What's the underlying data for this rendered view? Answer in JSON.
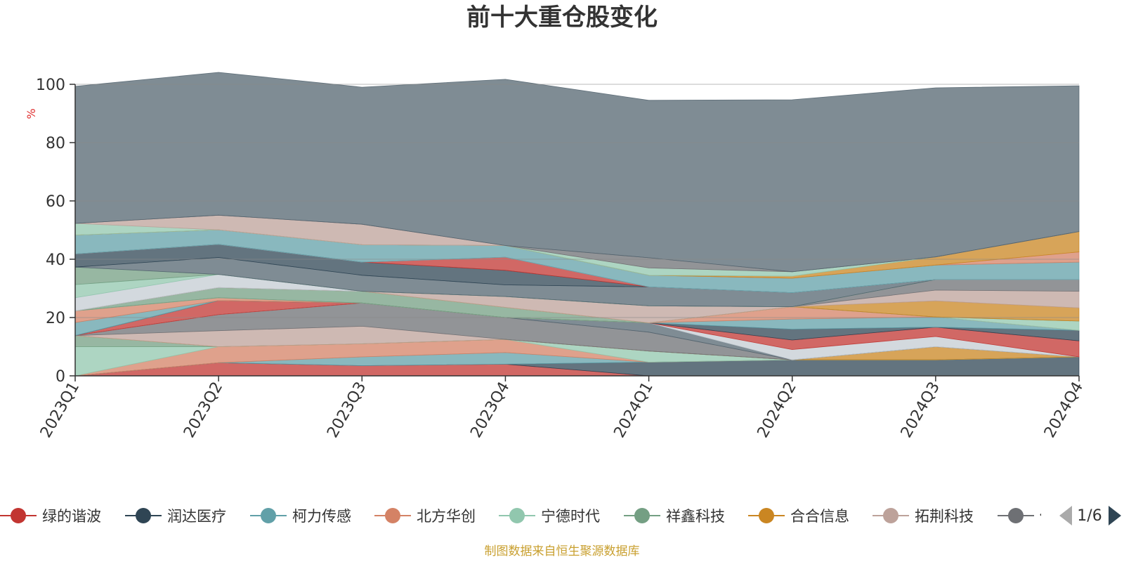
{
  "chart_data": {
    "type": "area",
    "title": "前十大重仓股变化",
    "ylabel": "%",
    "ylim": [
      0,
      100
    ],
    "yticks": [
      0,
      20,
      40,
      60,
      80,
      100
    ],
    "categories": [
      "2023Q1",
      "2023Q2",
      "2023Q3",
      "2023Q4",
      "2024Q1",
      "2024Q2",
      "2024Q3",
      "2024Q4"
    ],
    "series": [
      {
        "name": "绿的谐波",
        "color": "#c23531",
        "values": [
          0,
          4.5,
          3.5,
          4,
          0,
          0,
          0,
          0
        ]
      },
      {
        "name": "润达医疗",
        "color": "#2f4554",
        "values": [
          0,
          0,
          0,
          0,
          4.7,
          5.5,
          5.5,
          6.5
        ]
      },
      {
        "name": "柯力传感",
        "color": "#61a0a8",
        "values": [
          0,
          0,
          3,
          4,
          0,
          0,
          0,
          0
        ]
      },
      {
        "name": "北方华创",
        "color": "#d48265",
        "values": [
          0,
          5.5,
          4.5,
          4.5,
          0,
          0,
          0,
          0
        ]
      },
      {
        "name": "宁德时代",
        "color": "#91c7ae",
        "values": [
          10,
          0,
          0,
          0,
          3.8,
          0,
          0,
          0
        ]
      },
      {
        "name": "祥鑫科技",
        "color": "#749f83",
        "values": [
          3.8,
          0,
          0,
          0,
          0,
          0,
          0,
          0
        ]
      },
      {
        "name": "合合信息",
        "color": "#ca8622",
        "values": [
          0,
          0,
          0,
          0,
          0,
          0,
          4.5,
          0
        ]
      },
      {
        "name": "拓荆科技",
        "color": "#bda29a",
        "values": [
          0,
          5.5,
          6,
          0,
          0,
          0,
          0,
          0
        ]
      },
      {
        "name": "…",
        "color": "#6e7074",
        "values": [
          0,
          5.5,
          8,
          7.5,
          6.5,
          0,
          0,
          0
        ]
      },
      {
        "name": "",
        "color": "#546570",
        "values": [
          0,
          0,
          0,
          0,
          3.2,
          0,
          0,
          0
        ]
      },
      {
        "name": "",
        "color": "#c4ccd3",
        "values": [
          0,
          0,
          0,
          0,
          0,
          3.5,
          3.5,
          0
        ]
      },
      {
        "name": "",
        "color": "#c23531",
        "values": [
          0,
          4.8,
          0,
          0,
          0,
          3.3,
          3.2,
          5.5
        ]
      },
      {
        "name": "",
        "color": "#2f4554",
        "values": [
          0,
          0,
          0,
          0,
          0,
          3.7,
          0,
          3.6
        ]
      },
      {
        "name": "",
        "color": "#61a0a8",
        "values": [
          4.5,
          0,
          0,
          0,
          0,
          3.5,
          3.5,
          0
        ]
      },
      {
        "name": "",
        "color": "#d48265",
        "values": [
          4,
          1,
          0,
          0,
          0,
          4.2,
          0,
          0
        ]
      },
      {
        "name": "",
        "color": "#91c7ae",
        "values": [
          0,
          0,
          0,
          0,
          0,
          0,
          0,
          3.2
        ]
      },
      {
        "name": "",
        "color": "#749f83",
        "values": [
          0,
          3.5,
          4,
          3.5,
          0,
          0,
          0,
          0
        ]
      },
      {
        "name": "",
        "color": "#ca8622",
        "values": [
          0,
          0,
          0,
          0,
          0,
          0,
          5.5,
          4.5
        ]
      },
      {
        "name": "",
        "color": "#bda29a",
        "values": [
          0,
          0,
          0,
          3.7,
          5.8,
          0,
          3.7,
          5.7
        ]
      },
      {
        "name": "",
        "color": "#6e7074",
        "values": [
          0,
          0,
          0,
          0,
          0,
          0,
          3.6,
          4
        ]
      },
      {
        "name": "",
        "color": "#c4ccd3",
        "values": [
          4.5,
          4.5,
          0,
          0,
          0,
          0,
          0,
          0
        ]
      },
      {
        "name": "",
        "color": "#91c7ae",
        "values": [
          4.5,
          0,
          0,
          0,
          0,
          0,
          0,
          0
        ]
      },
      {
        "name": "",
        "color": "#749f83",
        "values": [
          6,
          0,
          0,
          0,
          0,
          0,
          0,
          0
        ]
      },
      {
        "name": "",
        "color": "#546570",
        "values": [
          0,
          5.8,
          5.5,
          4,
          6.5,
          4.8,
          0,
          0
        ]
      },
      {
        "name": "",
        "color": "#2f4554",
        "values": [
          4.5,
          4.5,
          4.5,
          5,
          0,
          0,
          0,
          0
        ]
      },
      {
        "name": "",
        "color": "#c23531",
        "values": [
          0,
          0,
          0,
          4.5,
          0,
          0,
          0,
          0
        ]
      },
      {
        "name": "",
        "color": "#c4ccd3",
        "values": [
          0,
          0,
          0,
          0,
          0,
          0,
          0,
          0
        ]
      },
      {
        "name": "",
        "color": "#61a0a8",
        "values": [
          6.5,
          5,
          6,
          4,
          4,
          5,
          5,
          6
        ]
      },
      {
        "name": "",
        "color": "#d48265",
        "values": [
          0,
          0,
          0,
          0,
          0,
          0,
          0,
          3.5
        ]
      },
      {
        "name": "",
        "color": "#ca8622",
        "values": [
          0,
          0,
          0,
          0,
          0,
          0.7,
          2.8,
          7
        ]
      },
      {
        "name": "",
        "color": "#91c7ae",
        "values": [
          4,
          0,
          0,
          0,
          2.5,
          1.5,
          0,
          0
        ]
      },
      {
        "name": "",
        "color": "#bda29a",
        "values": [
          0,
          5,
          7,
          0,
          0,
          0,
          0,
          0
        ]
      },
      {
        "name": "",
        "color": "#6e7074",
        "values": [
          0,
          0,
          0,
          0,
          3.5,
          0,
          0,
          0
        ]
      },
      {
        "name": "",
        "color": "#546570",
        "values": [
          47,
          49,
          47,
          57,
          54,
          59,
          58,
          50
        ]
      }
    ],
    "legend": {
      "items": [
        {
          "name": "绿的谐波",
          "color": "#c23531"
        },
        {
          "name": "润达医疗",
          "color": "#2f4554"
        },
        {
          "name": "柯力传感",
          "color": "#61a0a8"
        },
        {
          "name": "北方华创",
          "color": "#d48265"
        },
        {
          "name": "宁德时代",
          "color": "#91c7ae"
        },
        {
          "name": "祥鑫科技",
          "color": "#749f83"
        },
        {
          "name": "合合信息",
          "color": "#ca8622"
        },
        {
          "name": "拓荆科技",
          "color": "#bda29a"
        },
        {
          "name": "传",
          "color": "#6e7074"
        }
      ],
      "page": "1/6"
    }
  },
  "source_note": "制图数据来自恒生聚源数据库",
  "colors": {
    "title": "#333333",
    "ylabel": "#e03030",
    "source": "#c9a030",
    "axis": "#333333",
    "grid": "#888888",
    "pager_active": "#2f4554",
    "pager_inactive": "#aaaaaa"
  }
}
